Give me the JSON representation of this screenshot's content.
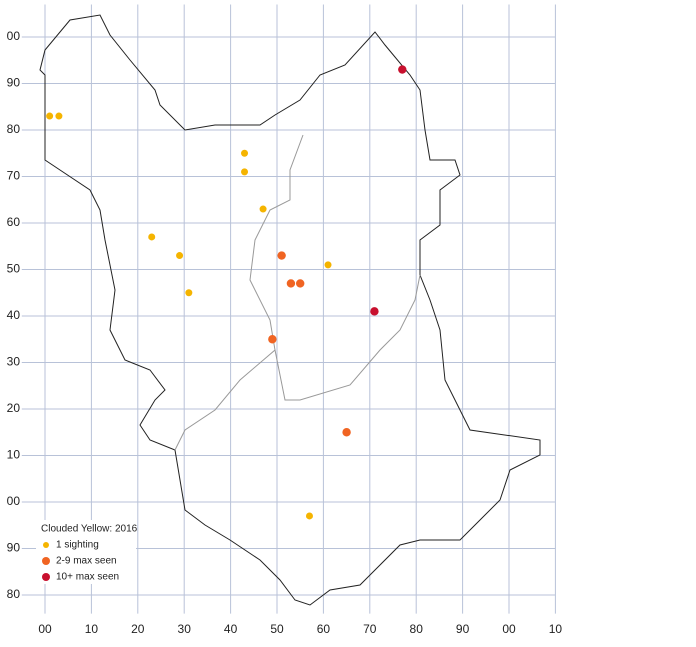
{
  "chart_data": {
    "type": "scatter",
    "legend_title": "Clouded Yellow:  2016",
    "xlim": [
      -5,
      110
    ],
    "ylim": [
      -24,
      107
    ],
    "xticks": [
      {
        "value": 0,
        "label": "00"
      },
      10,
      20,
      30,
      40,
      50,
      60,
      70,
      80,
      90,
      {
        "value": 100,
        "label": "00"
      },
      {
        "value": 110,
        "label": "10"
      }
    ],
    "yticks": [
      {
        "value": -20,
        "label": "80"
      },
      {
        "value": -10,
        "label": "90"
      },
      {
        "value": 0,
        "label": "00"
      },
      10,
      20,
      30,
      40,
      50,
      60,
      70,
      80,
      90,
      {
        "value": 100,
        "label": "00"
      }
    ],
    "grid": true,
    "legend": "lower left",
    "series": [
      {
        "name": "1 sighting",
        "color": "#f5b400",
        "x": [
          1,
          3,
          43,
          43,
          47,
          23,
          29,
          31,
          61,
          57
        ],
        "values": [
          83,
          83,
          75,
          71,
          63,
          57,
          53,
          45,
          51,
          -3
        ]
      },
      {
        "name": "2-9 max seen",
        "color": "#f06422",
        "x": [
          51,
          53,
          55,
          49,
          65
        ],
        "values": [
          53,
          47,
          47,
          35,
          15
        ]
      },
      {
        "name": "10+ max seen",
        "color": "#c8102e",
        "x": [
          77,
          71
        ],
        "values": [
          93,
          41
        ]
      }
    ]
  }
}
